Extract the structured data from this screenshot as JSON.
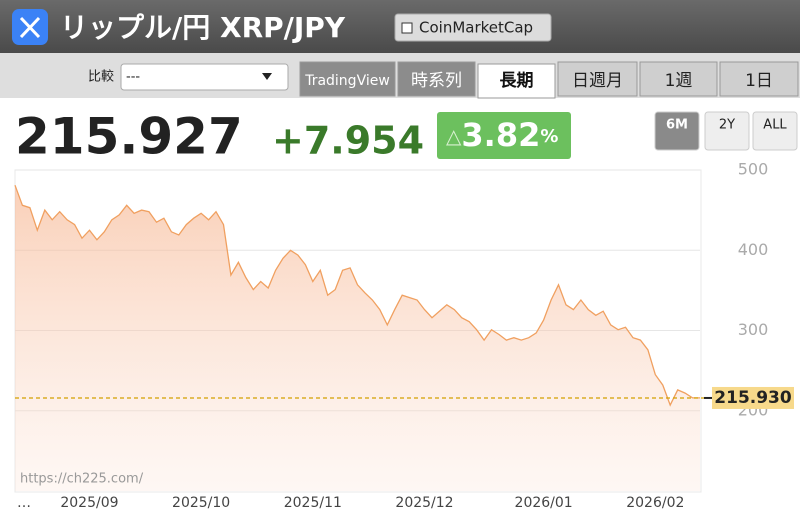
{
  "header": {
    "title": "リップル/円 XRP/JPY",
    "source_button": "CoinMarketCap"
  },
  "controls": {
    "compare_label": "比較",
    "compare_value": "---",
    "tabs": [
      "TradingView",
      "時系列",
      "長期",
      "日週月",
      "1週",
      "1日"
    ],
    "active_tab": 2
  },
  "quote": {
    "price": "215.927",
    "change": "+7.954",
    "badge_symbol": "△",
    "change_pct": "3.82",
    "pct_unit": "%"
  },
  "ranges": {
    "buttons": [
      "6M",
      "2Y",
      "ALL"
    ],
    "active": 0
  },
  "watermark": "https://ch225.com/",
  "chart_data": {
    "type": "line",
    "color": "#f0a060",
    "grid": true,
    "categories": [
      "…",
      null,
      null,
      null,
      null,
      null,
      null,
      null,
      null,
      null,
      "2025/09",
      null,
      null,
      null,
      null,
      null,
      null,
      null,
      null,
      null,
      null,
      null,
      null,
      null,
      null,
      "2025/10",
      null,
      null,
      null,
      null,
      null,
      null,
      null,
      null,
      null,
      null,
      null,
      null,
      null,
      null,
      "2025/11",
      null,
      null,
      null,
      null,
      null,
      null,
      null,
      null,
      null,
      null,
      null,
      null,
      null,
      null,
      "2025/12",
      null,
      null,
      null,
      null,
      null,
      null,
      null,
      null,
      null,
      null,
      null,
      null,
      null,
      null,
      null,
      "2026/01",
      null,
      null,
      null,
      null,
      null,
      null,
      null,
      null,
      null,
      null,
      null,
      null,
      null,
      null,
      "2026/02",
      null,
      null,
      null,
      null,
      null,
      null
    ],
    "values": [
      481,
      456,
      453,
      425,
      450,
      438,
      448,
      438,
      432,
      415,
      425,
      413,
      423,
      438,
      444,
      456,
      446,
      450,
      448,
      435,
      440,
      423,
      419,
      432,
      440,
      446,
      438,
      448,
      432,
      369,
      385,
      366,
      351,
      361,
      353,
      375,
      390,
      400,
      394,
      382,
      361,
      375,
      344,
      351,
      375,
      378,
      357,
      347,
      338,
      326,
      307,
      326,
      344,
      341,
      338,
      326,
      316,
      324,
      332,
      326,
      316,
      311,
      301,
      288,
      301,
      295,
      288,
      291,
      288,
      291,
      297,
      313,
      338,
      357,
      332,
      326,
      338,
      326,
      319,
      324,
      307,
      301,
      304,
      291,
      288,
      276,
      245,
      232,
      207,
      226,
      222,
      216,
      216
    ],
    "ylim": [
      100,
      500
    ],
    "yticks": [
      200,
      300,
      400,
      500
    ],
    "current_price": {
      "value": 215.93,
      "label": "215.930"
    }
  }
}
